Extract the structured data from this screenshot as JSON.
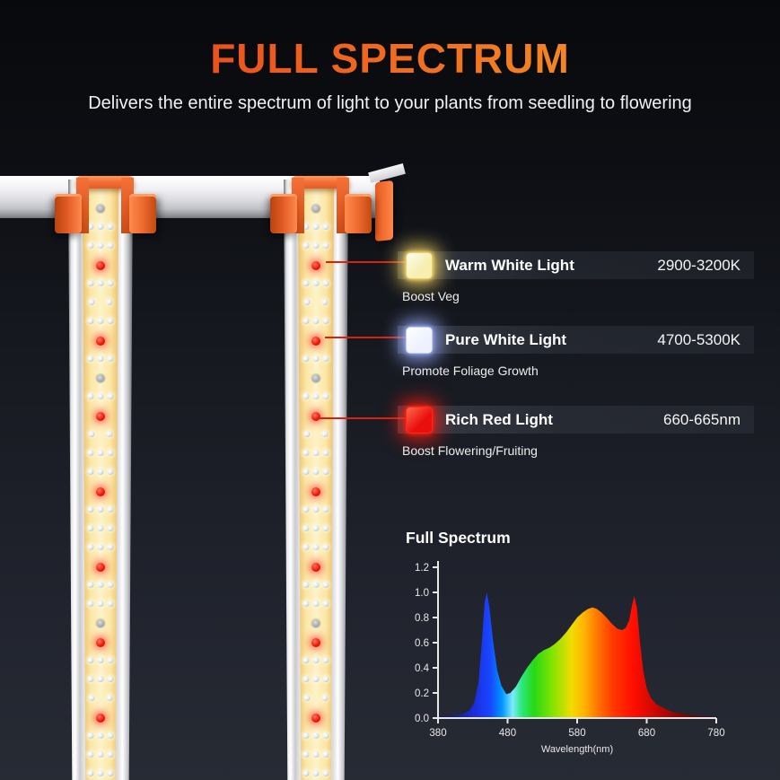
{
  "header": {
    "title": "FULL SPECTRUM",
    "subtitle": "Delivers the entire spectrum of light to your plants from seedling to flowering"
  },
  "colors": {
    "title_gradient": [
      "#e93417",
      "#f07020",
      "#f9a825"
    ],
    "callout_line": "#d8220f",
    "clip_orange": "#ef6426",
    "warm_strip": "#fdf3c8"
  },
  "legend": [
    {
      "name": "Warm White Light",
      "value": "2900-3200K",
      "caption": "Boost Veg",
      "swatch": {
        "fill": "#f7eeb0",
        "highlight": "#fffdf0",
        "border": "#e6d06e",
        "glow": "rgba(255,222,105,0.85)"
      }
    },
    {
      "name": "Pure White Light",
      "value": "4700-5300K",
      "caption": "Promote Foliage Growth",
      "swatch": {
        "fill": "#eef2ff",
        "highlight": "#ffffff",
        "border": "#c4cdf0",
        "glow": "rgba(155,175,255,0.85)"
      }
    },
    {
      "name": "Rich Red Light",
      "value": "660-665nm",
      "caption": "Boost Flowering/Fruiting",
      "swatch": {
        "fill": "#e90f0c",
        "highlight": "#ff6a4e",
        "border": "#ff2a1a",
        "glow": "rgba(255,30,15,0.8)"
      }
    }
  ],
  "chart_data": {
    "type": "area",
    "title": "Full Spectrum",
    "xlabel": "Wavelength(nm)",
    "ylabel": "",
    "xlim": [
      380,
      780
    ],
    "ylim": [
      0,
      1.2
    ],
    "x_tick_labels": [
      "380",
      "480",
      "580",
      "680",
      "780"
    ],
    "y_tick_labels": [
      "0.0",
      "0.2",
      "0.4",
      "0.6",
      "0.8",
      "1.0",
      "1.2"
    ],
    "x": [
      380,
      400,
      415,
      425,
      432,
      438,
      443,
      447,
      450,
      454,
      459,
      465,
      471,
      478,
      484,
      492,
      500,
      508,
      516,
      524,
      532,
      540,
      548,
      556,
      564,
      572,
      580,
      588,
      596,
      602,
      608,
      615,
      622,
      630,
      638,
      645,
      650,
      655,
      659,
      662,
      666,
      670,
      675,
      680,
      686,
      694,
      704,
      716,
      730,
      748,
      766,
      780
    ],
    "y": [
      0.01,
      0.02,
      0.03,
      0.06,
      0.12,
      0.28,
      0.6,
      0.92,
      1.0,
      0.88,
      0.62,
      0.38,
      0.26,
      0.19,
      0.2,
      0.25,
      0.33,
      0.4,
      0.46,
      0.51,
      0.54,
      0.56,
      0.59,
      0.63,
      0.68,
      0.74,
      0.8,
      0.84,
      0.87,
      0.88,
      0.87,
      0.84,
      0.8,
      0.75,
      0.71,
      0.7,
      0.72,
      0.78,
      0.9,
      0.97,
      0.88,
      0.62,
      0.38,
      0.24,
      0.16,
      0.11,
      0.08,
      0.05,
      0.035,
      0.02,
      0.012,
      0.01
    ],
    "fill_gradient": [
      {
        "wl": 380,
        "color": "#150e6e"
      },
      {
        "wl": 430,
        "color": "#1c2bd8"
      },
      {
        "wl": 455,
        "color": "#1846ff"
      },
      {
        "wl": 472,
        "color": "#0096ff"
      },
      {
        "wl": 487,
        "color": "#7deaff"
      },
      {
        "wl": 500,
        "color": "#2ce87e"
      },
      {
        "wl": 518,
        "color": "#27d816"
      },
      {
        "wl": 545,
        "color": "#85e400"
      },
      {
        "wl": 572,
        "color": "#f2dc00"
      },
      {
        "wl": 590,
        "color": "#ffb400"
      },
      {
        "wl": 608,
        "color": "#ff7a00"
      },
      {
        "wl": 630,
        "color": "#ff3c00"
      },
      {
        "wl": 660,
        "color": "#ff0f00"
      },
      {
        "wl": 690,
        "color": "#cf0900"
      },
      {
        "wl": 725,
        "color": "#8a0600"
      },
      {
        "wl": 780,
        "color": "#4a0300"
      }
    ]
  }
}
